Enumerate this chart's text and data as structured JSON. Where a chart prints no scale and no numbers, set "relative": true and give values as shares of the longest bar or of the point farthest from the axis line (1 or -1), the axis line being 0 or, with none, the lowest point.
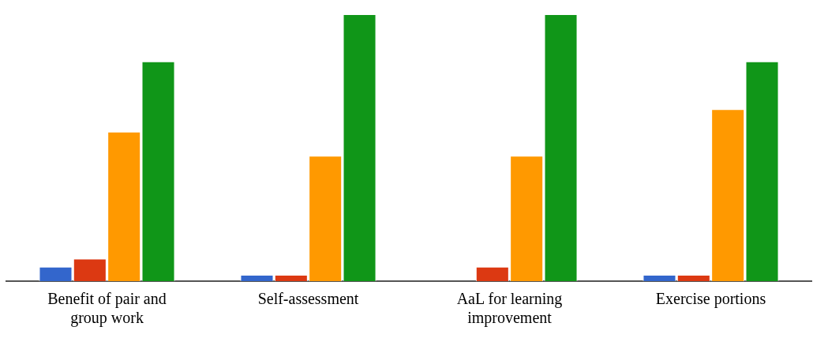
{
  "chart_data": {
    "type": "bar",
    "relative": true,
    "categories": [
      "Benefit of pair and group work",
      "Self-assessment",
      "AaL for learning improvement",
      "Exercise portions"
    ],
    "series": [
      {
        "color": "#3366cc",
        "values": [
          0.054,
          0.024,
          0,
          0.024
        ]
      },
      {
        "color": "#dc3912",
        "values": [
          0.084,
          0.024,
          0.054,
          0.024
        ]
      },
      {
        "color": "#ff9900",
        "values": [
          0.56,
          0.47,
          0.47,
          0.644
        ]
      },
      {
        "color": "#109618",
        "values": [
          0.823,
          1,
          1,
          0.823
        ]
      }
    ]
  }
}
